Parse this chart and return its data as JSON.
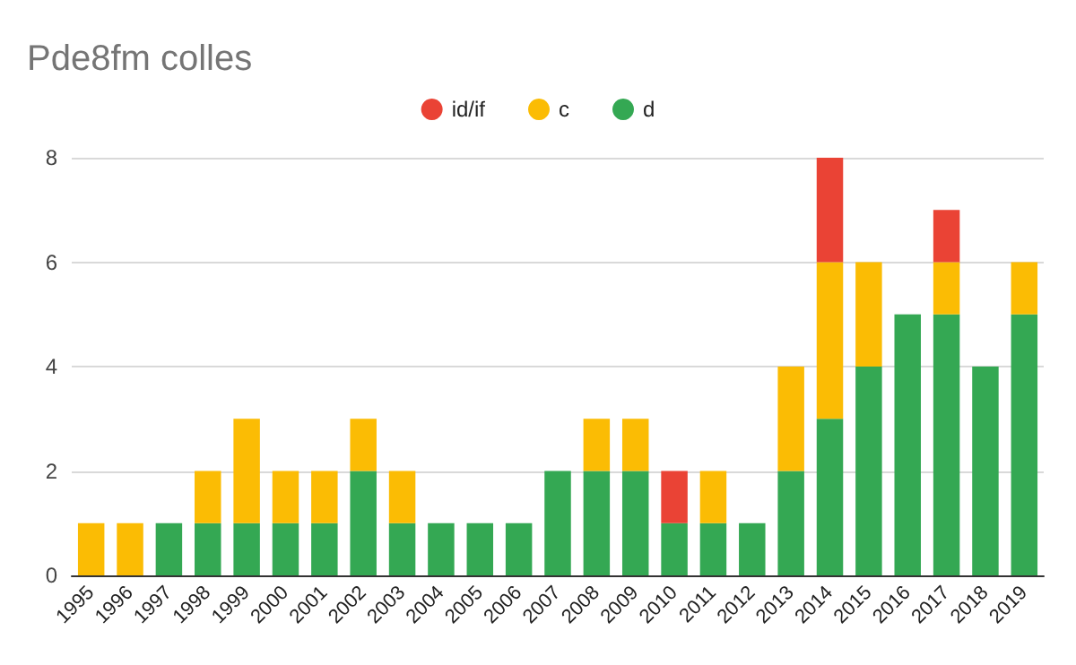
{
  "chart_data": {
    "type": "bar",
    "title": "Pde8fm colles",
    "stacked": true,
    "legend": "top",
    "grid": "y",
    "categories": [
      "1995",
      "1996",
      "1997",
      "1998",
      "1999",
      "2000",
      "2001",
      "2002",
      "2003",
      "2004",
      "2005",
      "2006",
      "2007",
      "2008",
      "2009",
      "2010",
      "2011",
      "2012",
      "2013",
      "2014",
      "2015",
      "2016",
      "2017",
      "2018",
      "2019"
    ],
    "series": [
      {
        "name": "d",
        "color": "#34a853",
        "values": [
          0,
          0,
          1,
          1,
          1,
          1,
          1,
          2,
          1,
          1,
          1,
          1,
          2,
          2,
          2,
          1,
          1,
          1,
          2,
          3,
          4,
          5,
          5,
          4,
          5
        ]
      },
      {
        "name": "c",
        "color": "#fbbc04",
        "values": [
          1,
          1,
          0,
          1,
          2,
          1,
          1,
          1,
          1,
          0,
          0,
          0,
          0,
          1,
          1,
          0,
          1,
          0,
          2,
          3,
          2,
          0,
          1,
          0,
          1
        ]
      },
      {
        "name": "id/if",
        "color": "#ea4335",
        "values": [
          0,
          0,
          0,
          0,
          0,
          0,
          0,
          0,
          0,
          0,
          0,
          0,
          0,
          0,
          0,
          1,
          0,
          0,
          0,
          2,
          0,
          0,
          1,
          0,
          0
        ]
      }
    ],
    "ylim": [
      0,
      8
    ],
    "yticks": [
      0,
      2,
      4,
      6,
      8
    ]
  }
}
